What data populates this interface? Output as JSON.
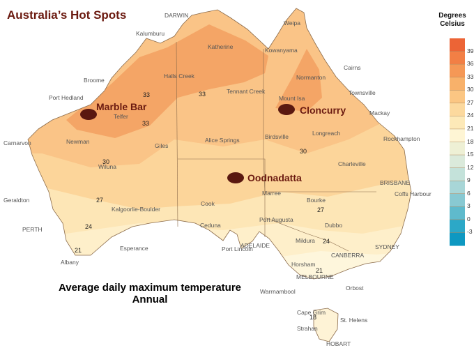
{
  "title": "Australia’s Hot Spots",
  "subtitle_line1": "Average daily maximum temperature",
  "subtitle_line2": "Annual",
  "legend": {
    "title_line1": "Degrees",
    "title_line2": "Celsius",
    "ticks": [
      "39",
      "36",
      "33",
      "30",
      "27",
      "24",
      "21",
      "18",
      "15",
      "12",
      "9",
      "6",
      "3",
      "0",
      "-3"
    ],
    "colors": [
      "#ec6436",
      "#f27f45",
      "#f59856",
      "#f8b16a",
      "#fbc683",
      "#fcd99e",
      "#fde9b8",
      "#fef5d4",
      "#eef0d5",
      "#dbeadb",
      "#c4e2da",
      "#a8d6d7",
      "#88c9d2",
      "#5fbacc",
      "#2ca8c7",
      "#0e98c1"
    ]
  },
  "hot_spots": [
    "Marble Bar",
    "Cloncurry",
    "Oodnadatta"
  ],
  "places": [
    "DARWIN",
    "Weipa",
    "Kalumburu",
    "Katherine",
    "Kowanyama",
    "Cairns",
    "Broome",
    "Halls Creek",
    "Normanton",
    "Townsville",
    "Port Hedland",
    "Tennant Creek",
    "Mount Isa",
    "Mackay",
    "Telfer",
    "Longreach",
    "Rockhampton",
    "Newman",
    "Giles",
    "Alice Springs",
    "Birdsville",
    "Carnarvon",
    "Wiluna",
    "Charleville",
    "BRISBANE",
    "Marree",
    "Geraldton",
    "Kalgoorlie-Boulder",
    "Cook",
    "Bourke",
    "Coffs Harbour",
    "PERTH",
    "Ceduna",
    "Port Augusta",
    "Dubbo",
    "Esperance",
    "ADELAIDE",
    "Mildura",
    "SYDNEY",
    "Port Lincoln",
    "CANBERRA",
    "Albany",
    "Horsham",
    "MELBOURNE",
    "Orbost",
    "Warrnambool",
    "Cape Grim",
    "St. Helens",
    "Strahan",
    "HOBART"
  ],
  "isotherm_labels": [
    "33",
    "33",
    "33",
    "30",
    "30",
    "27",
    "27",
    "24",
    "24",
    "21",
    "21",
    "18"
  ]
}
